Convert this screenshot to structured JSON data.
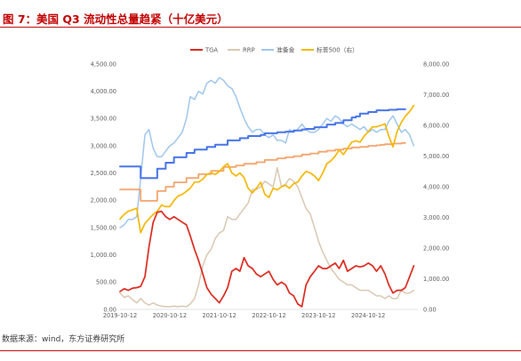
{
  "source": "数据来源：wind，东方证券研究所",
  "chart_data": {
    "type": "line",
    "title": "图 7：美国 Q3 流动性总量趋紧（十亿美元）",
    "grid": false,
    "legend": "top-center",
    "xlim": [
      "2019-10-12",
      "2025-10-12"
    ],
    "x_ticks": [
      "2019-10-12",
      "2020-10-12",
      "2021-10-12",
      "2022-10-12",
      "2023-10-12",
      "2024-10-12"
    ],
    "y_left": {
      "range": [
        0,
        4500
      ],
      "ticks": [
        0,
        500,
        1000,
        1500,
        2000,
        2500,
        3000,
        3500,
        4000,
        4500
      ],
      "tick_labels": [
        "0.00",
        "500.00",
        "1,000.00",
        "1,500.00",
        "2,000.00",
        "2,500.00",
        "3,000.00",
        "3,500.00",
        "4,000.00",
        "4,500.00"
      ]
    },
    "y_right": {
      "range": [
        0,
        8000
      ],
      "ticks": [
        0,
        1000,
        2000,
        3000,
        4000,
        5000,
        6000,
        7000,
        8000
      ],
      "tick_labels": [
        "0.00",
        "1,000.00",
        "2,000.00",
        "3,000.00",
        "4,000.00",
        "5,000.00",
        "6,000.00",
        "7,000.00",
        "8,000.00"
      ]
    },
    "x": [
      "2019-10-12",
      "2019-11-12",
      "2019-12-12",
      "2020-01-12",
      "2020-02-12",
      "2020-03-12",
      "2020-04-12",
      "2020-05-12",
      "2020-06-12",
      "2020-07-12",
      "2020-08-12",
      "2020-09-12",
      "2020-10-12",
      "2020-11-12",
      "2020-12-12",
      "2021-01-12",
      "2021-02-12",
      "2021-03-12",
      "2021-04-12",
      "2021-05-12",
      "2021-06-12",
      "2021-07-12",
      "2021-08-12",
      "2021-09-12",
      "2021-10-12",
      "2021-11-12",
      "2021-12-12",
      "2022-01-12",
      "2022-02-12",
      "2022-03-12",
      "2022-04-12",
      "2022-05-12",
      "2022-06-12",
      "2022-07-12",
      "2022-08-12",
      "2022-09-12",
      "2022-10-12",
      "2022-11-12",
      "2022-12-12",
      "2023-01-12",
      "2023-02-12",
      "2023-03-12",
      "2023-04-12",
      "2023-05-12",
      "2023-06-12",
      "2023-07-12",
      "2023-08-12",
      "2023-09-12",
      "2023-10-12",
      "2023-11-12",
      "2023-12-12",
      "2024-01-12",
      "2024-02-12",
      "2024-03-12",
      "2024-04-12",
      "2024-05-12",
      "2024-06-12",
      "2024-07-12",
      "2024-08-12",
      "2024-09-12",
      "2024-10-12",
      "2024-11-12",
      "2024-12-12",
      "2025-01-12",
      "2025-02-12",
      "2025-03-12",
      "2025-04-12",
      "2025-05-12",
      "2025-06-12",
      "2025-07-12",
      "2025-08-12",
      "2025-09-12"
    ],
    "series": [
      {
        "name": "TGA",
        "axis": "left",
        "color": "#d9261c",
        "step": false,
        "values": [
          330,
          380,
          350,
          390,
          400,
          420,
          600,
          1150,
          1600,
          1780,
          1800,
          1700,
          1650,
          1700,
          1650,
          1600,
          1550,
          1350,
          1100,
          900,
          650,
          400,
          280,
          200,
          120,
          250,
          400,
          700,
          750,
          700,
          950,
          800,
          750,
          650,
          600,
          650,
          700,
          550,
          450,
          500,
          450,
          300,
          250,
          100,
          50,
          450,
          600,
          700,
          800,
          750,
          750,
          800,
          850,
          750,
          900,
          700,
          750,
          800,
          780,
          800,
          850,
          800,
          700,
          800,
          650,
          450,
          300,
          350,
          350,
          400,
          600,
          800
        ]
      },
      {
        "name": "RRP",
        "axis": "left",
        "color": "#d8c7b1",
        "step": false,
        "values": [
          300,
          220,
          250,
          180,
          120,
          200,
          120,
          80,
          120,
          80,
          60,
          50,
          50,
          60,
          50,
          60,
          50,
          100,
          200,
          450,
          800,
          1000,
          1100,
          1300,
          1400,
          1450,
          1700,
          1650,
          1650,
          1750,
          1850,
          1950,
          2200,
          2200,
          2250,
          2350,
          2300,
          2250,
          2600,
          2250,
          2300,
          2400,
          2350,
          2250,
          2050,
          1850,
          1750,
          1500,
          1250,
          1050,
          900,
          750,
          650,
          550,
          500,
          450,
          450,
          400,
          350,
          350,
          350,
          300,
          250,
          250,
          200,
          250,
          200,
          200,
          350,
          300,
          300,
          350
        ]
      },
      {
        "name": "准备金",
        "axis": "left",
        "color": "#9ec5ec",
        "step": false,
        "values": [
          1500,
          1550,
          1650,
          1650,
          1700,
          2400,
          3200,
          3300,
          2950,
          2800,
          2800,
          2900,
          3000,
          3050,
          3150,
          3250,
          3500,
          3900,
          3850,
          4000,
          3950,
          4150,
          4200,
          4150,
          4250,
          4200,
          4100,
          4050,
          3900,
          3700,
          3500,
          3350,
          3250,
          3300,
          3300,
          3200,
          3150,
          3200,
          3100,
          3100,
          3050,
          3300,
          3250,
          3300,
          3400,
          3300,
          3250,
          3250,
          3300,
          3400,
          3500,
          3450,
          3550,
          3500,
          3400,
          3350,
          3400,
          3350,
          3300,
          3350,
          3250,
          3300,
          3250,
          3300,
          3300,
          3450,
          3550,
          3400,
          3250,
          3300,
          3200,
          3000
        ]
      },
      {
        "name": "标普500（右）",
        "axis": "right",
        "color": "#f2b705",
        "step": false,
        "values": [
          2950,
          3100,
          3200,
          3250,
          3300,
          2500,
          2800,
          2950,
          3100,
          3200,
          3400,
          3350,
          3350,
          3550,
          3700,
          3750,
          3850,
          3950,
          4150,
          4150,
          4250,
          4400,
          4450,
          4400,
          4500,
          4650,
          4750,
          4450,
          4350,
          4450,
          4300,
          3950,
          3800,
          3950,
          4150,
          3750,
          3650,
          3950,
          3900,
          4000,
          4050,
          3950,
          4100,
          4150,
          4350,
          4500,
          4450,
          4350,
          4200,
          4450,
          4750,
          4850,
          5000,
          5200,
          5050,
          5250,
          5450,
          5500,
          5450,
          5650,
          5800,
          5950,
          5950,
          6000,
          6050,
          5650,
          5300,
          5800,
          6100,
          6300,
          6450,
          6650
        ]
      },
      {
        "axis": "left",
        "color": "#4472e8",
        "step": true,
        "values": [
          2620,
          2620,
          2620,
          2620,
          2620,
          2410,
          2410,
          2410,
          2410,
          2580,
          2580,
          2690,
          2690,
          2790,
          2790,
          2790,
          2870,
          2870,
          2930,
          2930,
          2930,
          2980,
          2980,
          3020,
          3020,
          3020,
          3100,
          3100,
          3100,
          3140,
          3140,
          3180,
          3180,
          3180,
          3200,
          3230,
          3230,
          3230,
          3250,
          3250,
          3260,
          3260,
          3280,
          3280,
          3300,
          3310,
          3310,
          3340,
          3340,
          3340,
          3390,
          3390,
          3420,
          3420,
          3470,
          3470,
          3520,
          3540,
          3590,
          3590,
          3620,
          3620,
          3650,
          3650,
          3650,
          3660,
          3660,
          3670,
          3670,
          3670,
          null,
          null
        ]
      },
      {
        "axis": "left",
        "color": "#f4a36b",
        "step": true,
        "values": [
          2200,
          2200,
          2200,
          2200,
          2200,
          1990,
          1990,
          1990,
          1990,
          2170,
          2170,
          2250,
          2250,
          2330,
          2330,
          2330,
          2410,
          2410,
          2410,
          2480,
          2480,
          2480,
          2540,
          2540,
          2540,
          2610,
          2610,
          2610,
          2640,
          2640,
          2670,
          2670,
          2670,
          2700,
          2700,
          2740,
          2740,
          2740,
          2770,
          2770,
          2790,
          2790,
          2810,
          2810,
          2840,
          2840,
          2860,
          2860,
          2890,
          2890,
          2910,
          2910,
          2930,
          2930,
          2950,
          2950,
          2970,
          2970,
          2980,
          2980,
          3000,
          3000,
          3010,
          3020,
          3030,
          3030,
          3040,
          3040,
          3050,
          3050,
          null,
          null
        ]
      }
    ]
  }
}
